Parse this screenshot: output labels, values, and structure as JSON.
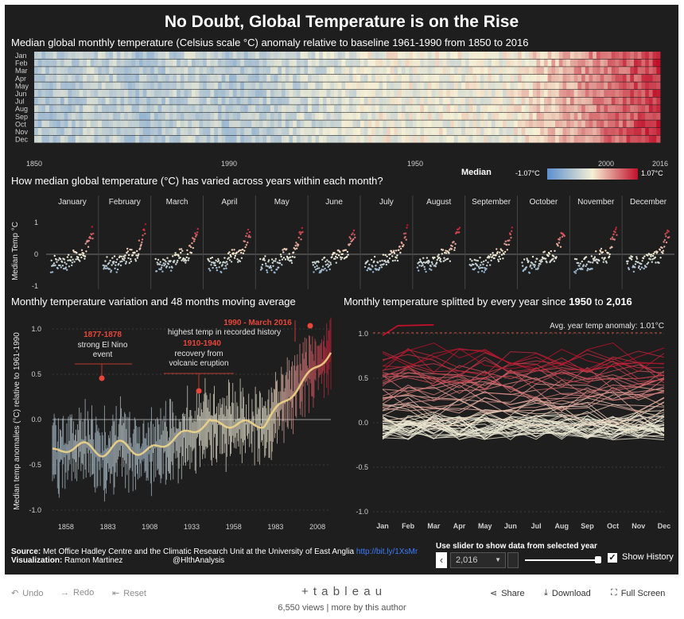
{
  "title": "No Doubt, Global Temperature is on the Rise",
  "heatmap": {
    "header": "Median global monthly temperature (Celsius scale °C) anomaly relative to baseline 1961-1990 from 1850 to 2016",
    "months": [
      "Jan",
      "Feb",
      "Mar",
      "Apr",
      "May",
      "Jun",
      "Jul",
      "Aug",
      "Sep",
      "Oct",
      "Nov",
      "Dec"
    ],
    "year_ticks": [
      "1850",
      "1990",
      "1950",
      "2000",
      "2016"
    ]
  },
  "legend": {
    "label": "Median",
    "min": "-1.07°C",
    "max": "1.07°C",
    "color_low": "#5b8fcf",
    "color_mid": "#f6f0d5",
    "color_high": "#c0102a"
  },
  "small_multiples": {
    "header": "How median global temperature (°C) has varied across years within each month?",
    "months": [
      "January",
      "February",
      "March",
      "April",
      "May",
      "June",
      "July",
      "August",
      "September",
      "October",
      "November",
      "December"
    ],
    "y_label": "Median Temp °C",
    "y_ticks": [
      "1",
      "0",
      "-1"
    ]
  },
  "moving_avg": {
    "header": "Monthly temperature variation and 48 months moving average",
    "y_label": "Median temp anomalies (°C) relative to 1961-1990",
    "y_ticks": [
      "1.0",
      "0.5",
      "0.0",
      "-0.5",
      "-1.0"
    ],
    "x_ticks": [
      "1858",
      "1883",
      "1908",
      "1933",
      "1958",
      "1983",
      "2008"
    ],
    "ann1_title": "1877-1878",
    "ann1_l1": "strong El Nino",
    "ann1_l2": "event",
    "ann2_title": "1910-1940",
    "ann2_l1": "recovery from",
    "ann2_l2": "volcanic eruption",
    "ann3_title": "1990 - March 2016",
    "ann3_l1": "highest temp in recorded history"
  },
  "yearly": {
    "header_pre": "Monthly temperature splitted by every year since ",
    "header_from": "1950",
    "header_mid": " to ",
    "header_to": "2,016",
    "avg_label": "Avg. year temp anomaly: 1.01°C",
    "y_ticks": [
      "1.0",
      "0.5",
      "0.0",
      "-0.5",
      "-1.0"
    ],
    "x_ticks": [
      "Jan",
      "Feb",
      "Mar",
      "Apr",
      "May",
      "Jun",
      "Jul",
      "Aug",
      "Sep",
      "Oct",
      "Nov",
      "Dec"
    ]
  },
  "source": {
    "label": "Source:",
    "text": " Met Office Hadley Centre and the Climatic Research Unit at the University of East Anglia ",
    "link": "http://bit.ly/1XsMr",
    "viz_label": "Visualization:",
    "viz_name": " Ramon Martinez",
    "handle": "@HlthAnalysis"
  },
  "controls": {
    "slider_label": "Use slider to show data from selected year",
    "year_value": "2,016",
    "show_history": "Show History"
  },
  "footer": {
    "undo": "Undo",
    "redo": "Redo",
    "reset": "Reset",
    "brand": "+ t a b l e a u",
    "views": "6,550 views | more by this author",
    "share": "Share",
    "download": "Download",
    "fullscreen": "Full Screen"
  },
  "chart_data": [
    {
      "type": "heatmap",
      "title": "Median global monthly temperature anomaly 1850-2016",
      "x": "year 1850-2016",
      "y": "month Jan-Dec",
      "value_range": [
        -1.07,
        1.07
      ]
    },
    {
      "type": "scatter",
      "title": "Median temperature by year within each month",
      "categories": [
        "January",
        "February",
        "March",
        "April",
        "May",
        "June",
        "July",
        "August",
        "September",
        "October",
        "November",
        "December"
      ],
      "ylim": [
        -1,
        1.2
      ]
    },
    {
      "type": "line",
      "title": "Monthly temperature variation and 48 months moving average",
      "x": [
        1858,
        1883,
        1908,
        1933,
        1958,
        1983,
        2008
      ],
      "series": [
        {
          "name": "48 month moving average",
          "values": [
            -0.3,
            -0.25,
            -0.45,
            -0.15,
            0.0,
            0.15,
            0.55
          ]
        }
      ],
      "ylim": [
        -1.0,
        1.0
      ]
    },
    {
      "type": "line",
      "title": "Monthly temperature splitted by every year since 1950 to 2016",
      "categories": [
        "Jan",
        "Feb",
        "Mar",
        "Apr",
        "May",
        "Jun",
        "Jul",
        "Aug",
        "Sep",
        "Oct",
        "Nov",
        "Dec"
      ],
      "reference": 1.01,
      "ylim": [
        -1.0,
        1.0
      ]
    }
  ]
}
